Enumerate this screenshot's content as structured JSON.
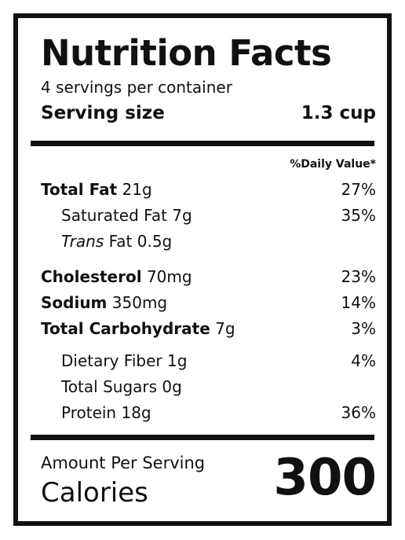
{
  "label": {
    "title": "Nutrition Facts",
    "servings": "4 servings per container",
    "serving_size_label": "Serving size",
    "serving_size_value": "1.3 cup",
    "dv_header": "%Daily Value*",
    "nutrients": [
      {
        "name": "Total Fat",
        "amount": "21g",
        "dv": "27%"
      },
      {
        "name": "Saturated Fat",
        "amount": "7g",
        "dv": "35%"
      },
      {
        "name": "Trans",
        "name_rest": "Fat",
        "amount": "0.5g",
        "dv": ""
      },
      {
        "name": "Cholesterol",
        "amount": "70mg",
        "dv": "23%"
      },
      {
        "name": "Sodium",
        "amount": "350mg",
        "dv": "14%"
      },
      {
        "name": "Total Carbohydrate",
        "amount": "7g",
        "dv": "3%"
      },
      {
        "name": "Dietary Fiber",
        "amount": "1g",
        "dv": "4%"
      },
      {
        "name": "Total Sugars",
        "amount": "0g",
        "dv": ""
      },
      {
        "name": "Protein",
        "amount": "18g",
        "dv": "36%"
      }
    ],
    "amount_per_serving": "Amount Per Serving",
    "calories_label": "Calories",
    "calories_value": "300"
  }
}
